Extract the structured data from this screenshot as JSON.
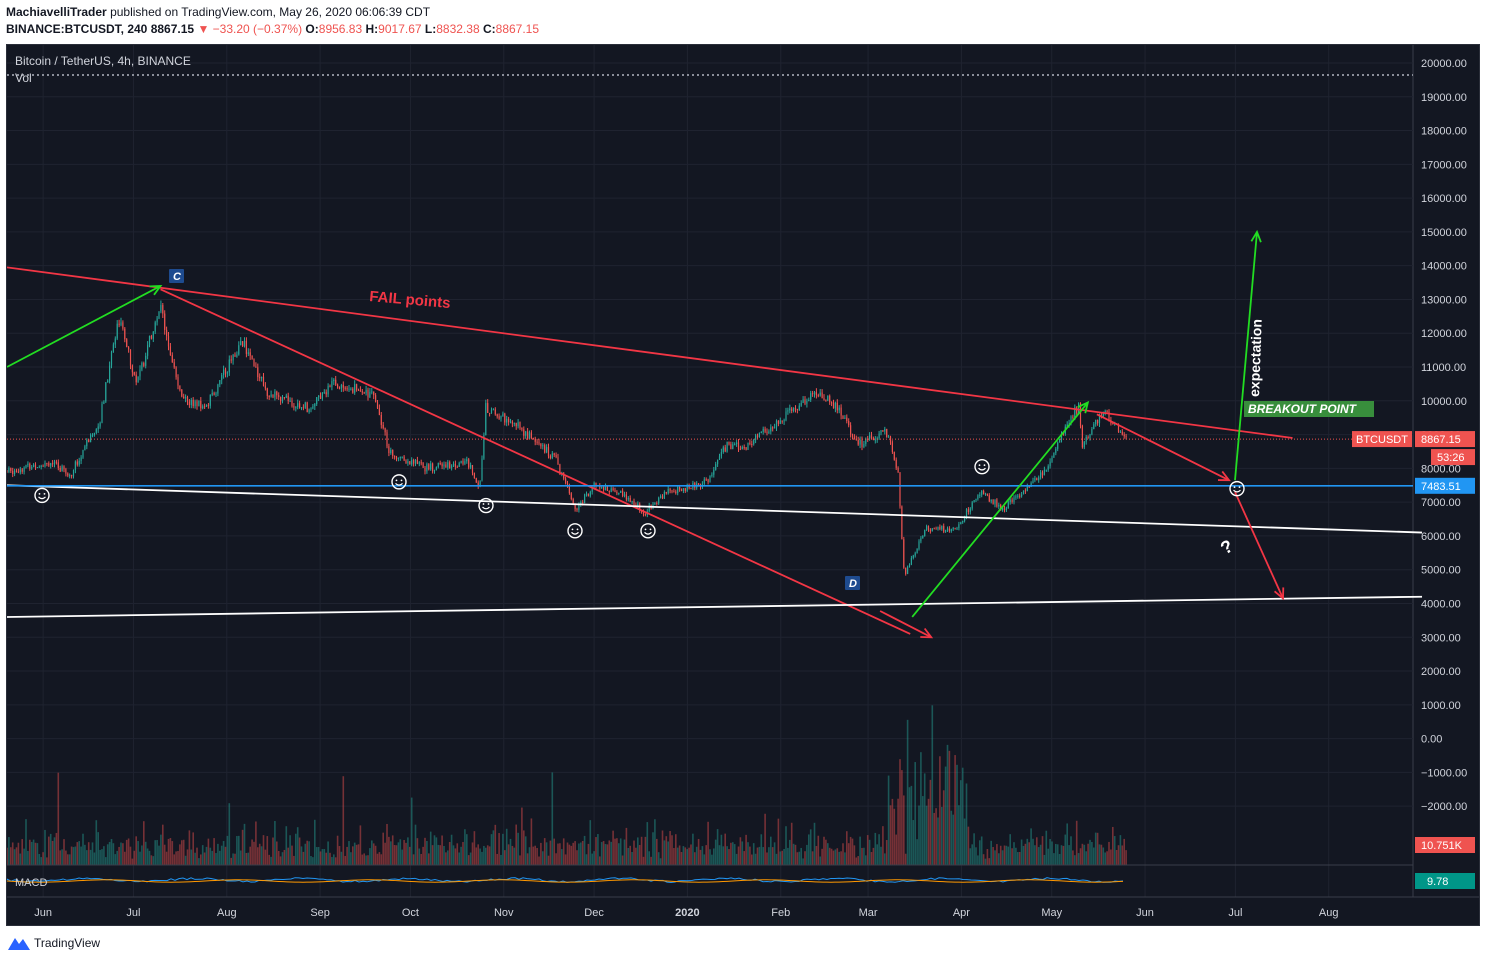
{
  "header": {
    "author": "MachiavelliTrader",
    "published_text": "published on TradingView.com, May 26, 2020 06:06:39 CDT",
    "symbol": "BINANCE:BTCUSDT, 240",
    "price": "8867.15",
    "change": "−33.20 (−0.37%)",
    "o_label": "O:",
    "o_value": "8956.83",
    "h_label": "H:",
    "h_value": "9017.67",
    "l_label": "L:",
    "l_value": "8832.38",
    "c_label": "C:",
    "c_value": "8867.15"
  },
  "legend": {
    "symbol": "Bitcoin / TetherUS, 4h, BINANCE",
    "vol": "Vol",
    "macd": "MACD"
  },
  "footer": {
    "brand": "TradingView"
  },
  "colors": {
    "background": "#131722",
    "grid": "#1f2330",
    "up": "#26a69a",
    "down": "#ef5350",
    "support_blue": "#2196f3",
    "trend_red": "#f23645",
    "arrow_green": "#22dd22",
    "label_green": "#388e3c",
    "price_tag": "#ef5350"
  },
  "chart_data": {
    "type": "candlestick",
    "timeframe": "4h",
    "x_axis_ticks": [
      "Jun",
      "Jul",
      "Aug",
      "Sep",
      "Oct",
      "Nov",
      "Dec",
      "2020",
      "Feb",
      "Mar",
      "Apr",
      "May",
      "Jun",
      "Jul",
      "Aug"
    ],
    "y_axis_ticks": [
      "20000.00",
      "19000.00",
      "18000.00",
      "17000.00",
      "16000.00",
      "15000.00",
      "14000.00",
      "13000.00",
      "12000.00",
      "11000.00",
      "10000.00",
      "9000.00",
      "8000.00",
      "7000.00",
      "6000.00",
      "5000.00",
      "4000.00",
      "3000.00",
      "2000.00",
      "1000.00",
      "0.00",
      "−1000.00",
      "−2000.00"
    ],
    "y_range": [
      -2400,
      20300
    ],
    "approx_path": [
      {
        "t": "2019-05-20",
        "p": 7900
      },
      {
        "t": "2019-06-03",
        "p": 8200
      },
      {
        "t": "2019-06-10",
        "p": 7800
      },
      {
        "t": "2019-06-20",
        "p": 9500
      },
      {
        "t": "2019-06-26",
        "p": 12500
      },
      {
        "t": "2019-07-02",
        "p": 10500
      },
      {
        "t": "2019-07-10",
        "p": 12800
      },
      {
        "t": "2019-07-17",
        "p": 10000
      },
      {
        "t": "2019-07-25",
        "p": 9800
      },
      {
        "t": "2019-08-06",
        "p": 11800
      },
      {
        "t": "2019-08-15",
        "p": 10200
      },
      {
        "t": "2019-08-28",
        "p": 9800
      },
      {
        "t": "2019-09-05",
        "p": 10500
      },
      {
        "t": "2019-09-19",
        "p": 10200
      },
      {
        "t": "2019-09-24",
        "p": 8500
      },
      {
        "t": "2019-10-06",
        "p": 8000
      },
      {
        "t": "2019-10-20",
        "p": 8200
      },
      {
        "t": "2019-10-24",
        "p": 7500
      },
      {
        "t": "2019-10-26",
        "p": 9800
      },
      {
        "t": "2019-11-05",
        "p": 9300
      },
      {
        "t": "2019-11-18",
        "p": 8300
      },
      {
        "t": "2019-11-25",
        "p": 6800
      },
      {
        "t": "2019-12-01",
        "p": 7500
      },
      {
        "t": "2019-12-10",
        "p": 7300
      },
      {
        "t": "2019-12-18",
        "p": 6700
      },
      {
        "t": "2019-12-25",
        "p": 7300
      },
      {
        "t": "2020-01-08",
        "p": 7600
      },
      {
        "t": "2020-01-14",
        "p": 8700
      },
      {
        "t": "2020-01-20",
        "p": 8600
      },
      {
        "t": "2020-01-31",
        "p": 9400
      },
      {
        "t": "2020-02-13",
        "p": 10300
      },
      {
        "t": "2020-02-20",
        "p": 9800
      },
      {
        "t": "2020-02-27",
        "p": 8700
      },
      {
        "t": "2020-03-07",
        "p": 9100
      },
      {
        "t": "2020-03-11",
        "p": 7900
      },
      {
        "t": "2020-03-13",
        "p": 4800
      },
      {
        "t": "2020-03-20",
        "p": 6200
      },
      {
        "t": "2020-03-30",
        "p": 6200
      },
      {
        "t": "2020-04-07",
        "p": 7300
      },
      {
        "t": "2020-04-15",
        "p": 6800
      },
      {
        "t": "2020-04-29",
        "p": 8000
      },
      {
        "t": "2020-05-07",
        "p": 9500
      },
      {
        "t": "2020-05-10",
        "p": 9800
      },
      {
        "t": "2020-05-11",
        "p": 8600
      },
      {
        "t": "2020-05-18",
        "p": 9700
      },
      {
        "t": "2020-05-26",
        "p": 8867
      }
    ],
    "current_price": 8867.15,
    "current_price_label": "8867.15",
    "symbol_tag": "BTCUSDT",
    "countdown": "53:26",
    "support_level": 7483.51,
    "support_label": "7483.51",
    "volume_label": "10.751K",
    "macd_label": "9.78",
    "annotations": {
      "fail_points": "FAIL points",
      "breakout_point": "BREAKOUT POINT",
      "expectation": "expectation",
      "question": "?",
      "marker_c": "C",
      "marker_d": "D"
    },
    "trendlines": [
      {
        "name": "descending-resistance",
        "color": "red",
        "from": {
          "t": "2019-05-20",
          "p": 13950
        },
        "to": {
          "t": "2020-07-20",
          "p": 8900
        }
      },
      {
        "name": "fall-channel",
        "color": "red",
        "from": {
          "t": "2019-07-10",
          "p": 13300
        },
        "to": {
          "t": "2020-03-15",
          "p": 3100
        }
      },
      {
        "name": "lower-white-support",
        "color": "white",
        "from": {
          "t": "2019-05-20",
          "p": 7500
        },
        "to": {
          "t": "2020-09-01",
          "p": 6100
        }
      },
      {
        "name": "bottom-white-support",
        "color": "white",
        "from": {
          "t": "2019-05-20",
          "p": 3600
        },
        "to": {
          "t": "2020-09-01",
          "p": 4200
        }
      }
    ]
  }
}
